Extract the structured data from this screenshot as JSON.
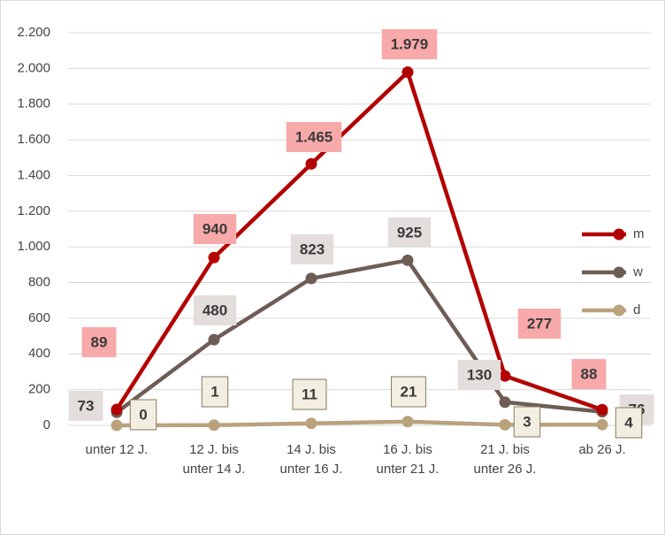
{
  "chart_data": {
    "type": "line",
    "categories": [
      [
        "unter 12 J."
      ],
      [
        "12 J. bis",
        "unter 14 J."
      ],
      [
        "14 J. bis",
        "unter 16 J."
      ],
      [
        "16 J. bis",
        "unter 21 J."
      ],
      [
        "21 J. bis",
        "unter 26 J."
      ],
      [
        "ab 26 J."
      ]
    ],
    "series": [
      {
        "name": "m",
        "color": "#b30000",
        "label_color": "#f8a9a9",
        "values": [
          89,
          940,
          1465,
          1979,
          277,
          88
        ],
        "value_labels": [
          "89",
          "940",
          "1.465",
          "1.979",
          "277",
          "88"
        ]
      },
      {
        "name": "w",
        "color": "#6e5d56",
        "label_color": "#e3dedb",
        "values": [
          73,
          480,
          823,
          925,
          130,
          76
        ]
      },
      {
        "name": "d",
        "color": "#b9a27c",
        "label_color": "#f3eee2",
        "values": [
          0,
          1,
          11,
          21,
          3,
          4
        ]
      }
    ],
    "ylim": [
      0,
      2200
    ],
    "yticks": [
      0,
      200,
      400,
      600,
      800,
      {
        "value": 1000,
        "label": "1.000"
      },
      {
        "value": 1200,
        "label": "1.200"
      },
      {
        "value": 1400,
        "label": "1.400"
      },
      {
        "value": 1600,
        "label": "1.600"
      },
      {
        "value": 1800,
        "label": "1.800"
      },
      {
        "value": 2000,
        "label": "2.000"
      },
      {
        "value": 2200,
        "label": "2.200"
      }
    ],
    "grid": true,
    "legend": "right"
  }
}
